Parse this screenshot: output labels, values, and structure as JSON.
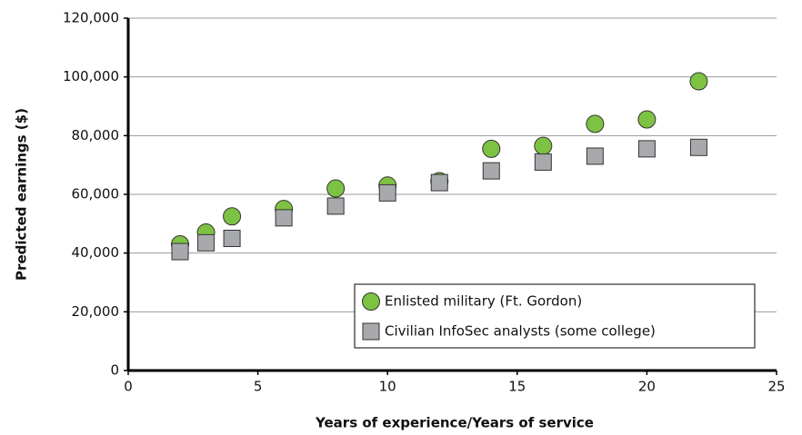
{
  "chart_data": {
    "type": "scatter",
    "xlabel": "Years of experience/Years of service",
    "ylabel": "Predicted earnings ($)",
    "xlim": [
      0,
      25
    ],
    "xticks": [
      0,
      5,
      10,
      15,
      20,
      25
    ],
    "ylim": [
      0,
      120000
    ],
    "yticks": [
      0,
      {
        "value": 20000,
        "label": "20,000"
      },
      {
        "value": 40000,
        "label": "40,000"
      },
      {
        "value": 60000,
        "label": "60,000"
      },
      {
        "value": 80000,
        "label": "80,000"
      },
      {
        "value": 100000,
        "label": "100,000"
      },
      {
        "value": 120000,
        "label": "120,000"
      }
    ],
    "grid": true,
    "legend": "lower right",
    "series": [
      {
        "name": "Enlisted military (Ft. Gordon)",
        "color": "#7dc242",
        "marker": "circle",
        "x": [
          2,
          3,
          4,
          6,
          8,
          10,
          12,
          14,
          16,
          18,
          20,
          22
        ],
        "values": [
          43000,
          47000,
          52500,
          55000,
          62000,
          63000,
          64500,
          75500,
          76500,
          84000,
          85500,
          98500
        ]
      },
      {
        "name": "Civilian InfoSec analysts (some college)",
        "color": "#a7a9ac",
        "marker": "square",
        "x": [
          2,
          3,
          4,
          6,
          8,
          10,
          12,
          14,
          16,
          18,
          20,
          22
        ],
        "values": [
          40500,
          43500,
          45000,
          52000,
          56000,
          60500,
          64000,
          68000,
          71000,
          73000,
          75500,
          76000
        ]
      }
    ]
  }
}
